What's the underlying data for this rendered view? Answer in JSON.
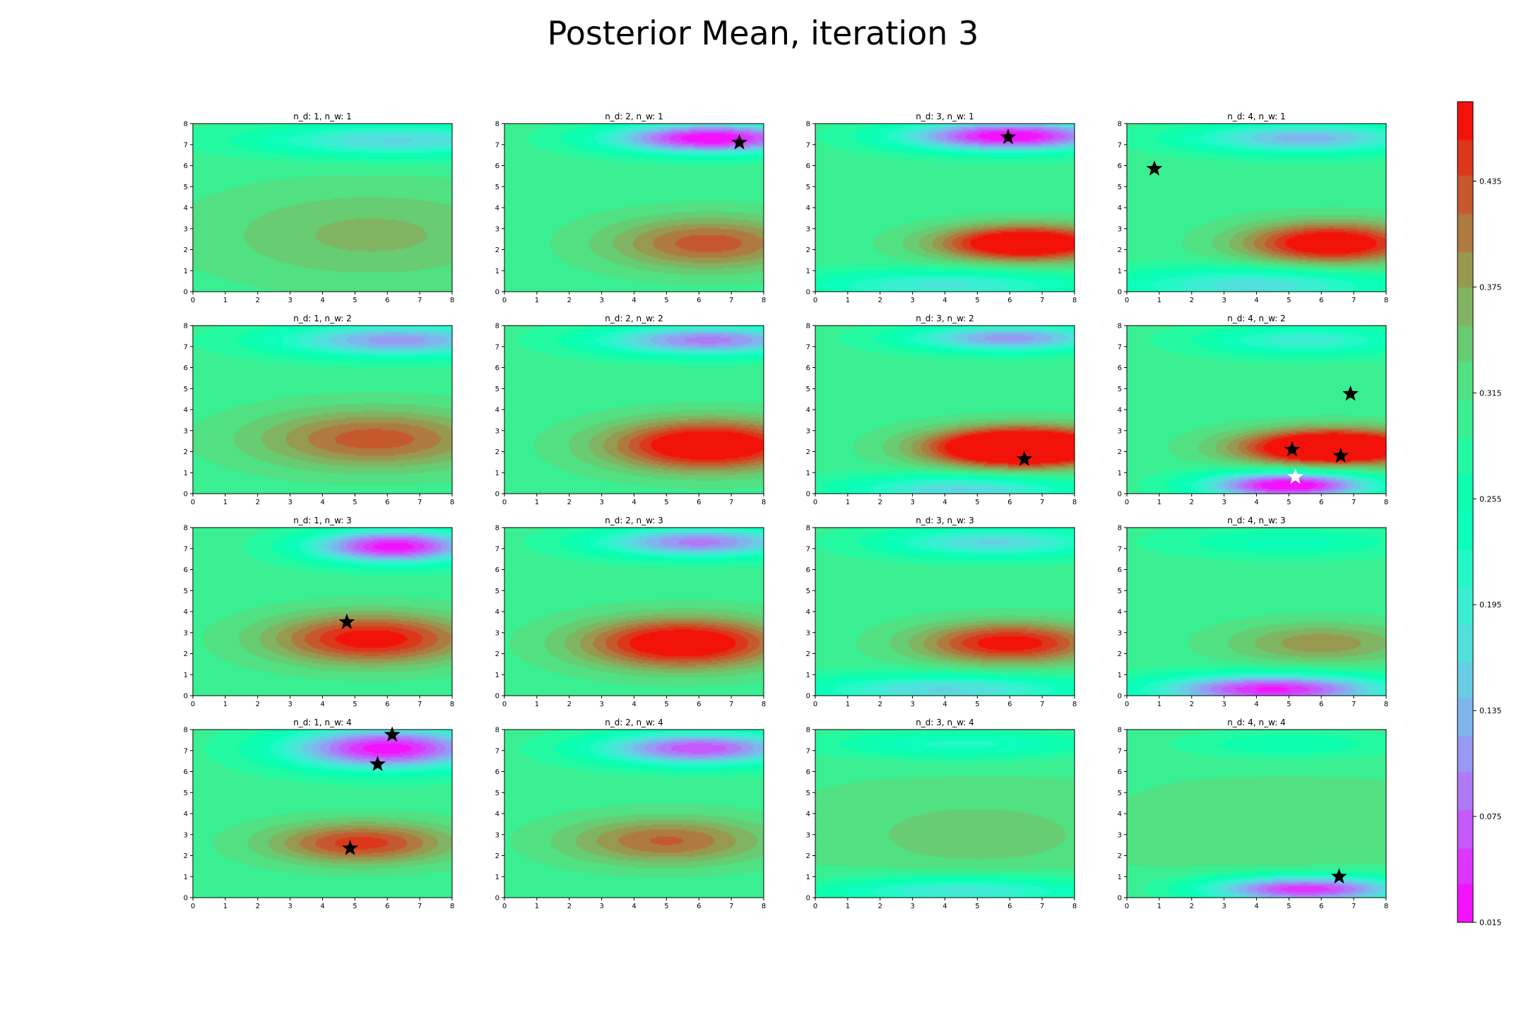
{
  "chart_data": {
    "type": "heatmap",
    "title": "Posterior Mean, iteration 3",
    "xlim": [
      0,
      8
    ],
    "ylim": [
      0,
      8
    ],
    "x_ticks": [
      "0",
      "1",
      "2",
      "3",
      "4",
      "5",
      "6",
      "7",
      "8"
    ],
    "y_ticks": [
      "0",
      "1",
      "2",
      "3",
      "4",
      "5",
      "6",
      "7",
      "8"
    ],
    "colormap": "rainbow",
    "colorbar": {
      "range": [
        0.015,
        0.48
      ],
      "ticks": [
        "0.015",
        "0.075",
        "0.135",
        "0.195",
        "0.255",
        "0.315",
        "0.375",
        "0.435"
      ],
      "tick_values": [
        0.015,
        0.075,
        0.135,
        0.195,
        0.255,
        0.315,
        0.375,
        0.435
      ]
    },
    "panels": [
      {
        "title": "n_d: 1, n_w: 1",
        "row": 0,
        "col": 0,
        "base": 0.3,
        "bumps": [
          {
            "x": 5.5,
            "y": 2.7,
            "sx": 3.5,
            "sy": 1.6,
            "a": 0.06
          },
          {
            "x": 6.3,
            "y": 7.2,
            "sx": 3.0,
            "sy": 0.55,
            "a": -0.14
          }
        ],
        "stars": []
      },
      {
        "title": "n_d: 2, n_w: 1",
        "row": 0,
        "col": 1,
        "base": 0.3,
        "bumps": [
          {
            "x": 6.3,
            "y": 2.3,
            "sx": 2.2,
            "sy": 0.9,
            "a": 0.13
          },
          {
            "x": 6.4,
            "y": 7.3,
            "sx": 2.2,
            "sy": 0.5,
            "a": -0.29
          }
        ],
        "stars": [
          {
            "x": 7.25,
            "y": 7.1,
            "color": "black"
          }
        ]
      },
      {
        "title": "n_d: 3, n_w: 1",
        "row": 0,
        "col": 2,
        "base": 0.3,
        "bumps": [
          {
            "x": 6.5,
            "y": 2.3,
            "sx": 1.9,
            "sy": 0.6,
            "a": 0.24
          },
          {
            "x": 6.0,
            "y": 7.4,
            "sx": 2.3,
            "sy": 0.5,
            "a": -0.29
          },
          {
            "x": 4.0,
            "y": 0.3,
            "sx": 3.0,
            "sy": 0.5,
            "a": -0.12
          }
        ],
        "stars": [
          {
            "x": 5.95,
            "y": 7.35,
            "color": "black"
          }
        ]
      },
      {
        "title": "n_d: 4, n_w: 1",
        "row": 0,
        "col": 3,
        "base": 0.3,
        "bumps": [
          {
            "x": 6.3,
            "y": 2.3,
            "sx": 1.9,
            "sy": 0.7,
            "a": 0.21
          },
          {
            "x": 5.5,
            "y": 7.3,
            "sx": 2.5,
            "sy": 0.5,
            "a": -0.17
          },
          {
            "x": 4.0,
            "y": 0.3,
            "sx": 3.0,
            "sy": 0.6,
            "a": -0.13
          }
        ],
        "stars": [
          {
            "x": 0.85,
            "y": 5.85,
            "color": "black"
          }
        ]
      },
      {
        "title": "n_d: 1, n_w: 2",
        "row": 1,
        "col": 0,
        "base": 0.3,
        "bumps": [
          {
            "x": 5.6,
            "y": 2.6,
            "sx": 2.6,
            "sy": 1.0,
            "a": 0.13
          },
          {
            "x": 6.3,
            "y": 7.3,
            "sx": 2.6,
            "sy": 0.55,
            "a": -0.19
          }
        ],
        "stars": []
      },
      {
        "title": "n_d: 2, n_w: 2",
        "row": 1,
        "col": 1,
        "base": 0.3,
        "bumps": [
          {
            "x": 6.3,
            "y": 2.3,
            "sx": 2.2,
            "sy": 0.85,
            "a": 0.22
          },
          {
            "x": 6.3,
            "y": 7.3,
            "sx": 2.4,
            "sy": 0.5,
            "a": -0.21
          }
        ],
        "stars": []
      },
      {
        "title": "n_d: 3, n_w: 2",
        "row": 1,
        "col": 2,
        "base": 0.3,
        "bumps": [
          {
            "x": 6.4,
            "y": 2.2,
            "sx": 2.0,
            "sy": 0.65,
            "a": 0.33
          },
          {
            "x": 6.0,
            "y": 7.4,
            "sx": 2.2,
            "sy": 0.45,
            "a": -0.19
          },
          {
            "x": 4.5,
            "y": 0.2,
            "sx": 2.5,
            "sy": 0.5,
            "a": -0.14
          }
        ],
        "stars": [
          {
            "x": 6.45,
            "y": 1.65,
            "color": "black"
          }
        ]
      },
      {
        "title": "n_d: 4, n_w: 2",
        "row": 1,
        "col": 3,
        "base": 0.3,
        "bumps": [
          {
            "x": 6.4,
            "y": 2.2,
            "sx": 2.0,
            "sy": 0.6,
            "a": 0.29
          },
          {
            "x": 5.0,
            "y": 0.4,
            "sx": 1.8,
            "sy": 0.45,
            "a": -0.3
          },
          {
            "x": 5.5,
            "y": 7.3,
            "sx": 2.2,
            "sy": 0.5,
            "a": -0.11
          }
        ],
        "stars": [
          {
            "x": 6.9,
            "y": 4.75,
            "color": "black"
          },
          {
            "x": 5.1,
            "y": 2.1,
            "color": "black"
          },
          {
            "x": 6.6,
            "y": 1.8,
            "color": "black"
          },
          {
            "x": 5.2,
            "y": 0.8,
            "color": "white"
          }
        ]
      },
      {
        "title": "n_d: 1, n_w: 3",
        "row": 2,
        "col": 0,
        "base": 0.3,
        "bumps": [
          {
            "x": 5.5,
            "y": 2.7,
            "sx": 2.2,
            "sy": 0.85,
            "a": 0.18
          },
          {
            "x": 6.2,
            "y": 7.1,
            "sx": 1.8,
            "sy": 0.55,
            "a": -0.28
          }
        ],
        "stars": [
          {
            "x": 4.75,
            "y": 3.5,
            "color": "black"
          }
        ]
      },
      {
        "title": "n_d: 2, n_w: 3",
        "row": 2,
        "col": 1,
        "base": 0.3,
        "bumps": [
          {
            "x": 5.5,
            "y": 2.5,
            "sx": 2.2,
            "sy": 0.85,
            "a": 0.21
          },
          {
            "x": 6.0,
            "y": 7.3,
            "sx": 2.2,
            "sy": 0.5,
            "a": -0.21
          }
        ],
        "stars": []
      },
      {
        "title": "n_d: 3, n_w: 3",
        "row": 2,
        "col": 2,
        "base": 0.3,
        "bumps": [
          {
            "x": 6.0,
            "y": 2.5,
            "sx": 2.0,
            "sy": 0.7,
            "a": 0.18
          },
          {
            "x": 5.5,
            "y": 7.3,
            "sx": 2.4,
            "sy": 0.5,
            "a": -0.14
          },
          {
            "x": 4.0,
            "y": 0.3,
            "sx": 3.0,
            "sy": 0.5,
            "a": -0.14
          }
        ],
        "stars": []
      },
      {
        "title": "n_d: 4, n_w: 3",
        "row": 2,
        "col": 3,
        "base": 0.3,
        "bumps": [
          {
            "x": 6.0,
            "y": 2.5,
            "sx": 2.0,
            "sy": 0.7,
            "a": 0.09
          },
          {
            "x": 4.5,
            "y": 0.3,
            "sx": 2.5,
            "sy": 0.5,
            "a": -0.27
          },
          {
            "x": 5.0,
            "y": 7.3,
            "sx": 2.5,
            "sy": 0.5,
            "a": -0.06
          }
        ],
        "stars": []
      },
      {
        "title": "n_d: 1, n_w: 4",
        "row": 3,
        "col": 0,
        "base": 0.3,
        "bumps": [
          {
            "x": 5.2,
            "y": 2.6,
            "sx": 2.0,
            "sy": 0.7,
            "a": 0.15
          },
          {
            "x": 6.0,
            "y": 7.1,
            "sx": 2.2,
            "sy": 0.7,
            "a": -0.28
          }
        ],
        "stars": [
          {
            "x": 6.15,
            "y": 7.75,
            "color": "black"
          },
          {
            "x": 5.7,
            "y": 6.35,
            "color": "black"
          },
          {
            "x": 4.85,
            "y": 2.35,
            "color": "black"
          }
        ]
      },
      {
        "title": "n_d: 2, n_w: 4",
        "row": 3,
        "col": 1,
        "base": 0.3,
        "bumps": [
          {
            "x": 5.0,
            "y": 2.7,
            "sx": 2.2,
            "sy": 0.8,
            "a": 0.12
          },
          {
            "x": 6.0,
            "y": 7.1,
            "sx": 2.2,
            "sy": 0.55,
            "a": -0.24
          }
        ],
        "stars": []
      },
      {
        "title": "n_d: 3, n_w: 4",
        "row": 3,
        "col": 2,
        "base": 0.31,
        "bumps": [
          {
            "x": 5.0,
            "y": 3.0,
            "sx": 2.5,
            "sy": 1.1,
            "a": 0.04
          },
          {
            "x": 4.5,
            "y": 0.3,
            "sx": 3.0,
            "sy": 0.5,
            "a": -0.13
          },
          {
            "x": 4.5,
            "y": 7.3,
            "sx": 3.0,
            "sy": 0.5,
            "a": -0.09
          }
        ],
        "stars": []
      },
      {
        "title": "n_d: 4, n_w: 4",
        "row": 3,
        "col": 3,
        "base": 0.31,
        "bumps": [
          {
            "x": 5.0,
            "y": 3.0,
            "sx": 2.5,
            "sy": 1.2,
            "a": 0.02
          },
          {
            "x": 5.5,
            "y": 0.4,
            "sx": 2.2,
            "sy": 0.45,
            "a": -0.27
          },
          {
            "x": 5.0,
            "y": 7.3,
            "sx": 2.5,
            "sy": 0.5,
            "a": -0.06
          }
        ],
        "stars": [
          {
            "x": 6.55,
            "y": 1.0,
            "color": "black"
          }
        ]
      }
    ]
  }
}
